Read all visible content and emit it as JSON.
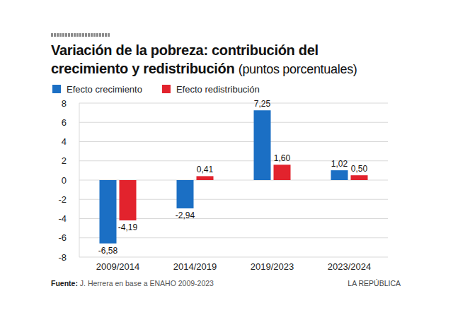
{
  "chart_data": {
    "type": "bar",
    "title": "Variación de la pobreza: contribución del crecimiento y redistribución",
    "subtitle": "(puntos porcentuales)",
    "categories": [
      "2009/2014",
      "2014/2019",
      "2019/2023",
      "2023/2024"
    ],
    "series": [
      {
        "name": "Efecto crecimiento",
        "color": "#1b6fc4",
        "values": [
          -6.58,
          -2.94,
          7.25,
          1.02
        ],
        "value_labels": [
          "-6,58",
          "-2,94",
          "7,25",
          "1,02"
        ]
      },
      {
        "name": "Efecto redistribución",
        "color": "#e2232d",
        "values": [
          -4.19,
          0.41,
          1.6,
          0.5
        ],
        "value_labels": [
          "-4,19",
          "0,41",
          "1,60",
          "0,50"
        ]
      }
    ],
    "ylim": [
      -8,
      8
    ],
    "yticks": [
      -8,
      -6,
      -4,
      -2,
      0,
      2,
      4,
      6,
      8
    ],
    "grid": true,
    "data_labels": true,
    "legend": "top-left",
    "source_label": "Fuente:",
    "source": "J. Herrera en base a ENAHO 2009-2023",
    "credit": "LA REPÚBLICA"
  }
}
